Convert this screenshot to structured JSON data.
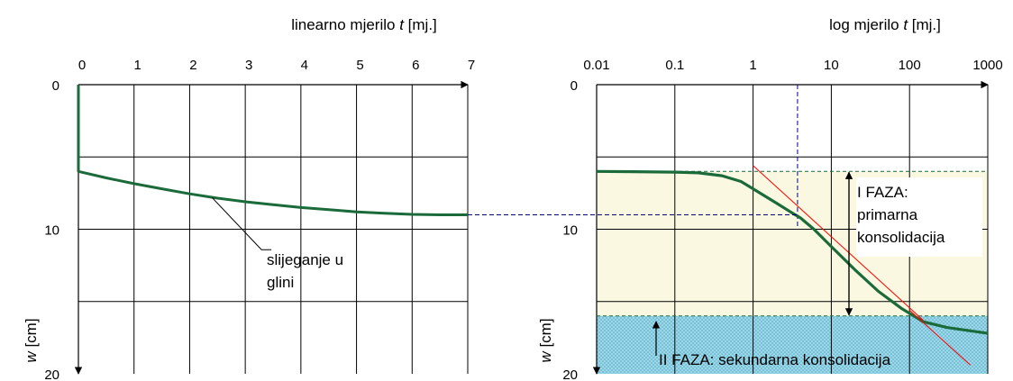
{
  "chart_data": [
    {
      "type": "line",
      "title": {
        "prefix": "linearno mjerilo ",
        "var": "t",
        "unit": " [mj.]"
      },
      "ylabel": {
        "var": "w",
        "unit": " [cm]"
      },
      "x_ticks": [
        "0",
        "1",
        "2",
        "3",
        "4",
        "5",
        "6",
        "7"
      ],
      "y_ticks": [
        "0",
        "10",
        "20"
      ],
      "xlim": [
        0,
        7
      ],
      "ylim": [
        0,
        20
      ],
      "y_inverted": true,
      "x_scale": "linear",
      "grid": true,
      "series": [
        {
          "color": "#1b6b3a",
          "points": [
            [
              0,
              0
            ],
            [
              0,
              6
            ],
            [
              0.5,
              6.45
            ],
            [
              1,
              6.85
            ],
            [
              1.5,
              7.2
            ],
            [
              2,
              7.55
            ],
            [
              2.5,
              7.85
            ],
            [
              3,
              8.1
            ],
            [
              3.5,
              8.3
            ],
            [
              4,
              8.5
            ],
            [
              4.5,
              8.65
            ],
            [
              5,
              8.8
            ],
            [
              5.5,
              8.9
            ],
            [
              6,
              8.97
            ],
            [
              6.5,
              9.0
            ],
            [
              7,
              9.0
            ]
          ]
        }
      ],
      "annotation": {
        "lines": [
          "slijeganje u",
          "glini"
        ],
        "points_to": [
          2.4,
          7.8
        ]
      }
    },
    {
      "type": "line",
      "title": {
        "prefix": "log mjerilo ",
        "var": "t",
        "unit": " [mj.]"
      },
      "ylabel": {
        "var": "w",
        "unit": " [cm]"
      },
      "x_ticks": [
        "0.01",
        "0.1",
        "1",
        "10",
        "100",
        "1000"
      ],
      "y_ticks": [
        "0",
        "10",
        "20"
      ],
      "xlim": [
        0.01,
        1000
      ],
      "ylim": [
        0,
        20
      ],
      "y_inverted": true,
      "x_scale": "log",
      "grid": true,
      "series": [
        {
          "color": "#1b6b3a",
          "points": [
            [
              0.01,
              6
            ],
            [
              0.03,
              6.02
            ],
            [
              0.1,
              6.05
            ],
            [
              0.2,
              6.1
            ],
            [
              0.4,
              6.3
            ],
            [
              0.7,
              6.7
            ],
            [
              1,
              7.2
            ],
            [
              2,
              8.2
            ],
            [
              3,
              8.8
            ],
            [
              4,
              9.2
            ],
            [
              6,
              10.0
            ],
            [
              10,
              11.2
            ],
            [
              20,
              12.8
            ],
            [
              40,
              14.3
            ],
            [
              80,
              15.5
            ],
            [
              150,
              16.4
            ],
            [
              300,
              16.8
            ],
            [
              1000,
              17.2
            ]
          ]
        }
      ],
      "tangents": [
        {
          "from": [
            1,
            5.6
          ],
          "to": [
            150,
            16.3
          ],
          "color": "#ff0000"
        },
        {
          "from": [
            100,
            15.6
          ],
          "to": [
            600,
            19.4
          ],
          "color": "#ff0000"
        }
      ],
      "connector": {
        "from_chart_x": 7,
        "to_x": 3.7,
        "y": 9.0,
        "color": "#000080"
      },
      "vertical_guide": {
        "x": 3.7,
        "y_from": 0,
        "y_to": 10,
        "color": "#000080"
      },
      "phase_lines": {
        "y_top": 6,
        "y_bottom": 16,
        "color": "#1b6b3a"
      },
      "phase_1": {
        "label_lines": [
          "I FAZA:",
          "primarna",
          "konsolidacija"
        ],
        "fill": "#fbf8e2",
        "y_range": [
          6,
          16
        ]
      },
      "phase_2": {
        "label": "II FAZA: sekundarna konsolidacija",
        "fill": "#9ed8e8",
        "y_range": [
          16,
          20
        ]
      }
    }
  ]
}
